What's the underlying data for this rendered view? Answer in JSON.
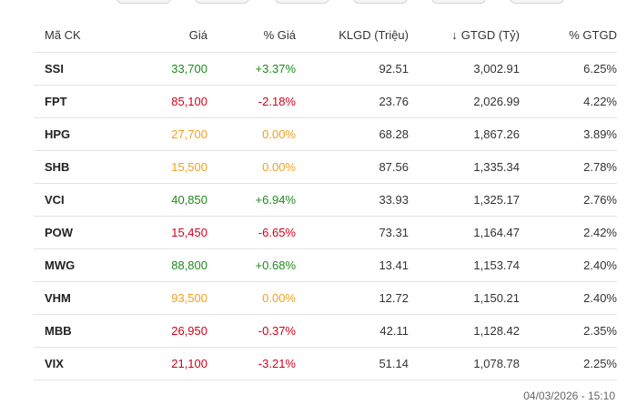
{
  "table": {
    "headers": {
      "symbol": "Mã CK",
      "price": "Giá",
      "change": "% Giá",
      "volume": "KLGD (Triệu)",
      "value_sort_arrow": "↓",
      "value": "GTGD (Tỷ)",
      "value_pct": "% GTGD"
    },
    "rows": [
      {
        "symbol": "SSI",
        "price": "33,700",
        "change": "+3.37%",
        "volume": "92.51",
        "value": "3,002.91",
        "value_pct": "6.25%"
      },
      {
        "symbol": "FPT",
        "price": "85,100",
        "change": "-2.18%",
        "volume": "23.76",
        "value": "2,026.99",
        "value_pct": "4.22%"
      },
      {
        "symbol": "HPG",
        "price": "27,700",
        "change": "0.00%",
        "volume": "68.28",
        "value": "1,867.26",
        "value_pct": "3.89%"
      },
      {
        "symbol": "SHB",
        "price": "15,500",
        "change": "0.00%",
        "volume": "87.56",
        "value": "1,335.34",
        "value_pct": "2.78%"
      },
      {
        "symbol": "VCI",
        "price": "40,850",
        "change": "+6.94%",
        "volume": "33.93",
        "value": "1,325.17",
        "value_pct": "2.76%"
      },
      {
        "symbol": "POW",
        "price": "15,450",
        "change": "-6.65%",
        "volume": "73.31",
        "value": "1,164.47",
        "value_pct": "2.42%"
      },
      {
        "symbol": "MWG",
        "price": "88,800",
        "change": "+0.68%",
        "volume": "13.41",
        "value": "1,153.74",
        "value_pct": "2.40%"
      },
      {
        "symbol": "VHM",
        "price": "93,500",
        "change": "0.00%",
        "volume": "12.72",
        "value": "1,150.21",
        "value_pct": "2.40%"
      },
      {
        "symbol": "MBB",
        "price": "26,950",
        "change": "-0.37%",
        "volume": "42.11",
        "value": "1,128.42",
        "value_pct": "2.35%"
      },
      {
        "symbol": "VIX",
        "price": "21,100",
        "change": "-3.21%",
        "volume": "51.14",
        "value": "1,078.78",
        "value_pct": "2.25%"
      }
    ]
  },
  "footer": {
    "timestamp": "04/03/2026 - 15:10"
  },
  "colors": {
    "up": "#1e8a1e",
    "down": "#d0021b",
    "reference": "#f0a020",
    "text": "#333333",
    "border": "#e3e3e3"
  },
  "price_status": [
    "up",
    "down",
    "ref",
    "ref",
    "up",
    "down",
    "up",
    "ref",
    "down",
    "down"
  ]
}
